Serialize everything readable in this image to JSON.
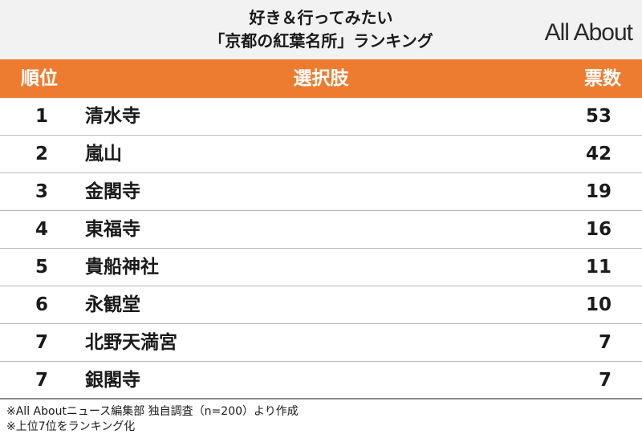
{
  "header": {
    "title_line1": "好き＆行ってみたい",
    "title_line2": "「京都の紅葉名所」ランキング",
    "logo": "All About"
  },
  "table": {
    "columns": {
      "rank": "順位",
      "choice": "選択肢",
      "votes": "票数"
    },
    "rows": [
      {
        "rank": "1",
        "name": "清水寺",
        "votes": "53"
      },
      {
        "rank": "2",
        "name": "嵐山",
        "votes": "42"
      },
      {
        "rank": "3",
        "name": "金閣寺",
        "votes": "19"
      },
      {
        "rank": "4",
        "name": "東福寺",
        "votes": "16"
      },
      {
        "rank": "5",
        "name": "貴船神社",
        "votes": "11"
      },
      {
        "rank": "6",
        "name": "永観堂",
        "votes": "10"
      },
      {
        "rank": "7",
        "name": "北野天満宮",
        "votes": "7"
      },
      {
        "rank": "7",
        "name": "銀閣寺",
        "votes": "7"
      }
    ]
  },
  "notes": [
    "※All Aboutニュース編集部 独自調査（n=200）より作成",
    "※上位7位をランキング化"
  ],
  "colors": {
    "accent": "#ee7c30",
    "header_bg": "#f2f2f2"
  }
}
